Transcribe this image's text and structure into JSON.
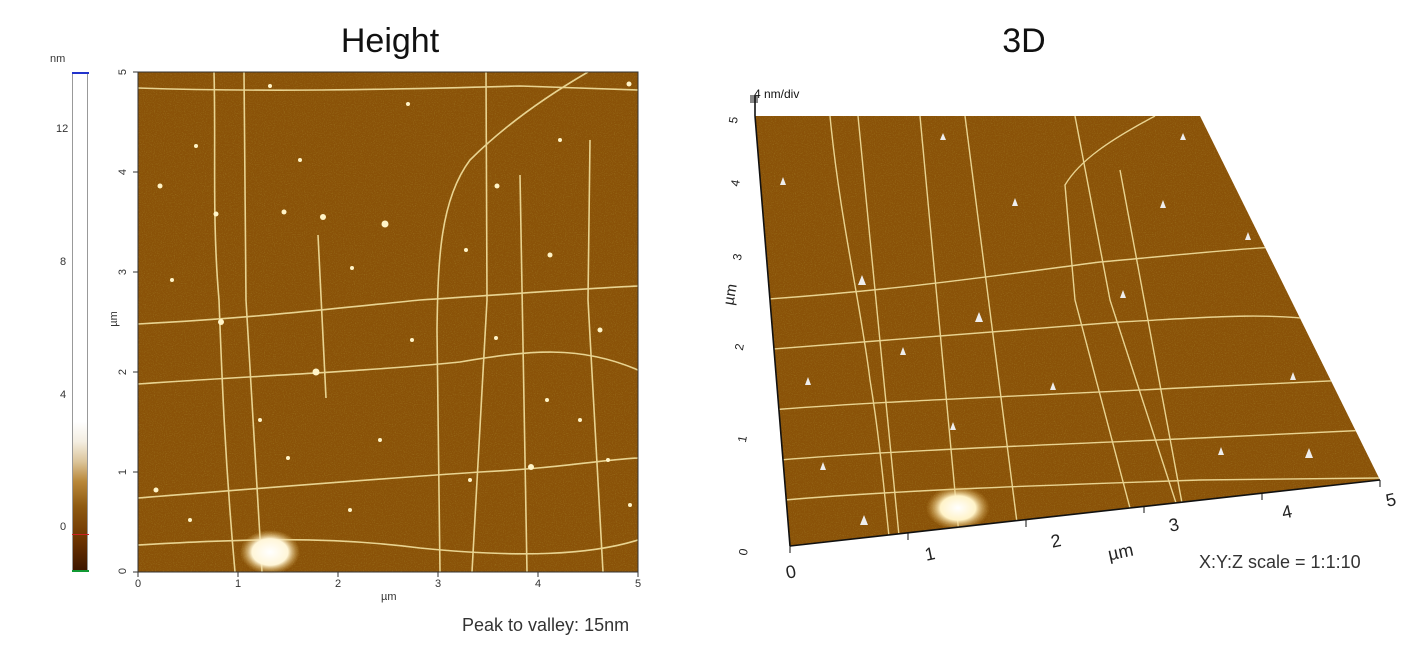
{
  "left_panel": {
    "title": "Height",
    "colorbar": {
      "unit": "nm",
      "ticks": [
        "12",
        "8",
        "4",
        "0"
      ],
      "tick_values": [
        12,
        8,
        4,
        0
      ],
      "range": [
        -1.3,
        13.7
      ],
      "colors": [
        "#4a1d00",
        "#8b4a00",
        "#c89a40",
        "#efe6d2",
        "#ffffff"
      ]
    },
    "x_axis": {
      "label": "µm",
      "ticks": [
        "0",
        "1",
        "2",
        "3",
        "4",
        "5"
      ]
    },
    "y_axis": {
      "label": "µm",
      "ticks": [
        "5",
        "4",
        "3",
        "2",
        "1",
        "0"
      ]
    },
    "note": "Peak to valley: 15nm"
  },
  "right_panel": {
    "title": "3D",
    "z_scale": "4 nm/div",
    "x_axis": {
      "label": "µm",
      "ticks": [
        "0",
        "1",
        "2",
        "3",
        "4",
        "5"
      ]
    },
    "y_axis": {
      "label": "µm",
      "ticks": [
        "0",
        "1",
        "2",
        "3",
        "4",
        "5"
      ]
    },
    "note": "X:Y:Z scale = 1:1:10"
  },
  "colors": {
    "surface": "#8a5208",
    "surface_dark": "#6b3d05",
    "feature": "#f3e2a0"
  }
}
